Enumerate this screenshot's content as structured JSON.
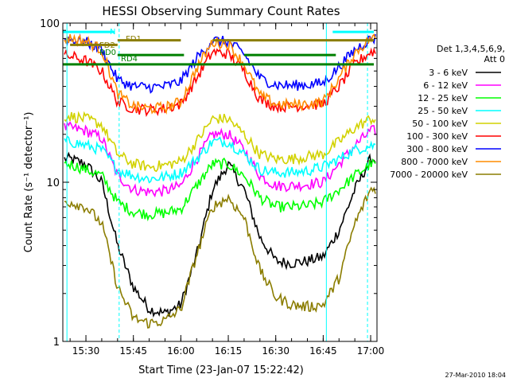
{
  "chart_data": {
    "type": "line",
    "title": "HESSI Observing Summary Count Rates",
    "xlabel": "Start Time (23-Jan-07 15:22:42)",
    "ylabel": "Count Rate (s⁻¹ detector⁻¹)",
    "yscale": "log",
    "ylim": [
      1,
      100
    ],
    "xlim": [
      "15:22:42",
      "17:02:00"
    ],
    "x_ticks": [
      "15:30",
      "15:45",
      "16:00",
      "16:15",
      "16:30",
      "16:45",
      "17:00"
    ],
    "y_ticks": [
      "1",
      "10",
      "100"
    ],
    "legend_header": [
      "Det 1,3,4,5,6,9,",
      "Att 0"
    ],
    "legend_position": "right",
    "timestamp": "27-Mar-2010 18:04",
    "flag_labels": [
      {
        "text": "N",
        "color": "#00ffff"
      },
      {
        "text": "FD1",
        "color": "#8b7d00"
      },
      {
        "text": "FD2",
        "color": "#8b7d00"
      },
      {
        "text": "RD0",
        "color": "#008000"
      },
      {
        "text": "RD4",
        "color": "#008000"
      }
    ],
    "vlines": [
      {
        "x": "15:24:00",
        "color": "#00ffff",
        "style": "solid"
      },
      {
        "x": "15:40:30",
        "color": "#00ffff",
        "style": "dashed"
      },
      {
        "x": "16:46:00",
        "color": "#00ffff",
        "style": "solid"
      },
      {
        "x": "16:59:00",
        "color": "#00ffff",
        "style": "dashed"
      }
    ],
    "hbars": [
      {
        "color": "#00ffff",
        "y": 88,
        "segments": [
          [
            "15:22:42",
            "15:39:00"
          ],
          [
            "16:48:00",
            "17:01:00"
          ]
        ]
      },
      {
        "color": "#8b7d00",
        "y": 78,
        "segments": [
          [
            "15:40:00",
            "16:00:00"
          ],
          [
            "16:10:00",
            "17:01:00"
          ]
        ]
      },
      {
        "color": "#8b7d00",
        "y": 73,
        "segments": [
          [
            "15:25:00",
            "15:40:00"
          ]
        ]
      },
      {
        "color": "#008000",
        "y": 63,
        "segments": [
          [
            "15:40:00",
            "16:01:00"
          ],
          [
            "16:20:00",
            "16:49:00"
          ]
        ]
      },
      {
        "color": "#008000",
        "y": 55,
        "segments": [
          [
            "15:22:42",
            "17:01:00"
          ]
        ]
      }
    ],
    "x": [
      "15:25",
      "15:30",
      "15:35",
      "15:40",
      "15:45",
      "15:50",
      "15:55",
      "16:00",
      "16:05",
      "16:10",
      "16:15",
      "16:20",
      "16:25",
      "16:30",
      "16:35",
      "16:40",
      "16:45",
      "16:50",
      "16:55",
      "17:00"
    ],
    "series": [
      {
        "name": "3 - 6 keV",
        "color": "#000000",
        "values": [
          14,
          13,
          10,
          4.0,
          2.2,
          1.6,
          1.5,
          1.7,
          3.5,
          9.0,
          13,
          9.0,
          4.5,
          3.2,
          3.1,
          3.2,
          3.4,
          5.0,
          9.0,
          14
        ]
      },
      {
        "name": "6 - 12 keV",
        "color": "#ff00ff",
        "values": [
          22,
          21,
          19,
          11,
          9.0,
          8.7,
          8.8,
          9.5,
          14,
          20,
          20,
          16,
          11,
          9.5,
          9.5,
          9.7,
          10,
          13,
          17,
          21
        ]
      },
      {
        "name": "12 - 25 keV",
        "color": "#00ff00",
        "values": [
          13,
          12,
          11,
          7.5,
          6.5,
          6.3,
          6.4,
          6.8,
          9.5,
          13,
          13,
          11,
          8.0,
          7.0,
          7.0,
          7.1,
          7.5,
          9.0,
          11,
          13
        ]
      },
      {
        "name": "25 - 50 keV",
        "color": "#00ffff",
        "values": [
          18,
          17,
          16,
          12,
          11,
          10.5,
          10.8,
          11.5,
          14,
          18,
          18,
          15,
          12,
          11.5,
          11.5,
          11.8,
          12.5,
          14,
          16,
          17
        ]
      },
      {
        "name": "50 - 100 keV",
        "color": "#d2d200",
        "values": [
          26,
          25,
          23,
          15,
          13,
          12.5,
          12.8,
          13.5,
          18,
          25,
          25,
          20,
          15,
          14,
          14,
          14.5,
          15,
          18,
          22,
          25
        ]
      },
      {
        "name": "100 - 300 keV",
        "color": "#ff0000",
        "values": [
          62,
          58,
          50,
          32,
          29,
          28.5,
          29,
          31,
          45,
          66,
          64,
          50,
          33,
          30,
          30,
          30.5,
          31,
          40,
          55,
          66
        ]
      },
      {
        "name": "300 - 800 keV",
        "color": "#0000ff",
        "values": [
          79,
          76,
          68,
          44,
          40,
          39.5,
          40,
          43,
          60,
          78,
          76,
          64,
          45,
          41,
          40.5,
          41,
          42,
          53,
          68,
          80
        ]
      },
      {
        "name": "800 - 7000 keV",
        "color": "#ff8c00",
        "values": [
          80,
          77,
          68,
          36,
          30,
          29,
          29.5,
          32,
          52,
          76,
          74,
          55,
          35,
          31,
          30.5,
          31,
          32,
          45,
          65,
          80
        ]
      },
      {
        "name": "7000 - 20000 keV",
        "color": "#8b7d00",
        "values": [
          7.5,
          7.0,
          5.5,
          2.2,
          1.4,
          1.3,
          1.35,
          1.6,
          3.5,
          7.0,
          8.0,
          6.0,
          2.8,
          1.9,
          1.7,
          1.65,
          1.7,
          2.5,
          5.5,
          9.0
        ]
      }
    ]
  }
}
